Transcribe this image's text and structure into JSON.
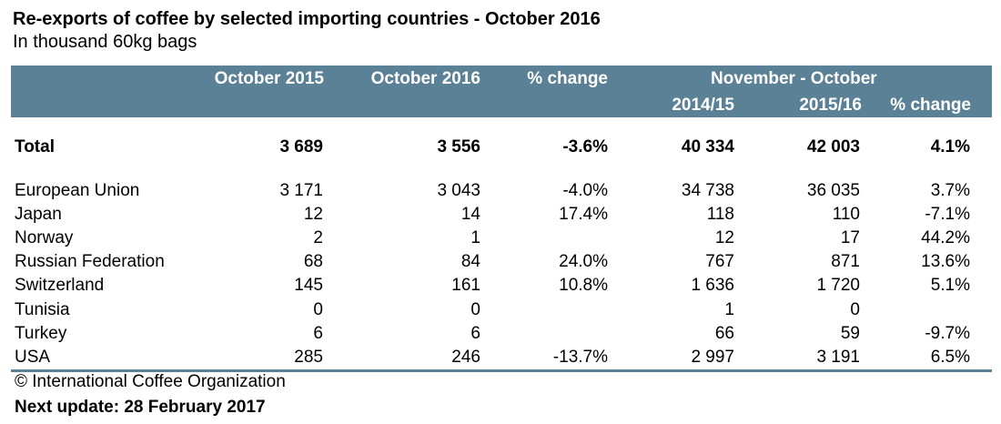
{
  "title": "Re-exports of coffee by selected importing countries - October 2016",
  "subtitle": "In thousand 60kg bags",
  "header": {
    "col1": "October 2015",
    "col2": "October 2016",
    "col3": "% change",
    "group": "November - October",
    "col4": "2014/15",
    "col5": "2015/16",
    "col6": "% change"
  },
  "total": {
    "name": "Total",
    "oct2015": "3 689",
    "oct2016": "3 556",
    "change": "-3.6%",
    "y1415": "40 334",
    "y1516": "42 003",
    "ychange": "4.1%"
  },
  "rows": [
    {
      "name": "European Union",
      "oct2015": "3 171",
      "oct2016": "3 043",
      "change": "-4.0%",
      "y1415": "34 738",
      "y1516": "36 035",
      "ychange": "3.7%"
    },
    {
      "name": "Japan",
      "oct2015": "12",
      "oct2016": "14",
      "change": "17.4%",
      "y1415": "118",
      "y1516": "110",
      "ychange": "-7.1%"
    },
    {
      "name": "Norway",
      "oct2015": "2",
      "oct2016": "1",
      "change": "",
      "y1415": "12",
      "y1516": "17",
      "ychange": "44.2%"
    },
    {
      "name": "Russian Federation",
      "oct2015": "68",
      "oct2016": "84",
      "change": "24.0%",
      "y1415": "767",
      "y1516": "871",
      "ychange": "13.6%"
    },
    {
      "name": "Switzerland",
      "oct2015": "145",
      "oct2016": "161",
      "change": "10.8%",
      "y1415": "1 636",
      "y1516": "1 720",
      "ychange": "5.1%"
    },
    {
      "name": "Tunisia",
      "oct2015": "0",
      "oct2016": "0",
      "change": "",
      "y1415": "1",
      "y1516": "0",
      "ychange": ""
    },
    {
      "name": "Turkey",
      "oct2015": "6",
      "oct2016": "6",
      "change": "",
      "y1415": "66",
      "y1516": "59",
      "ychange": "-9.7%"
    },
    {
      "name": "USA",
      "oct2015": "285",
      "oct2016": "246",
      "change": "-13.7%",
      "y1415": "2 997",
      "y1516": "3 191",
      "ychange": "6.5%"
    }
  ],
  "footer": {
    "copyright": "© International Coffee Organization",
    "next_update": "Next update: 28 February 2017"
  }
}
